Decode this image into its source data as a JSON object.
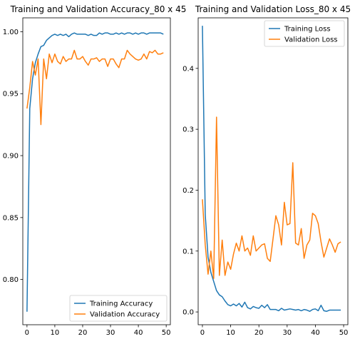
{
  "colors": {
    "train": "#1f77b4",
    "val": "#ff7f0e"
  },
  "chart_data": [
    {
      "type": "line",
      "title": "Training and Validation Accuracy_80 x 45",
      "xlabel": "",
      "ylabel": "",
      "xlim": [
        -1.5,
        51.5
      ],
      "ylim": [
        0.7635,
        1.0112
      ],
      "xticks": [
        0,
        10,
        20,
        30,
        40,
        50
      ],
      "yticks": [
        0.8,
        0.85,
        0.9,
        0.95,
        1.0
      ],
      "ytick_labels": [
        "0.80",
        "0.85",
        "0.90",
        "0.95",
        "1.00"
      ],
      "legend_position": "lower-right",
      "x": [
        0,
        1,
        2,
        3,
        4,
        5,
        6,
        7,
        8,
        9,
        10,
        11,
        12,
        13,
        14,
        15,
        16,
        17,
        18,
        19,
        20,
        21,
        22,
        23,
        24,
        25,
        26,
        27,
        28,
        29,
        30,
        31,
        32,
        33,
        34,
        35,
        36,
        37,
        38,
        39,
        40,
        41,
        42,
        43,
        44,
        45,
        46,
        47,
        48,
        49
      ],
      "series": [
        {
          "name": "Training Accuracy",
          "color_key": "train",
          "values": [
            0.774,
            0.938,
            0.962,
            0.975,
            0.982,
            0.988,
            0.989,
            0.993,
            0.995,
            0.997,
            0.998,
            0.997,
            0.998,
            0.997,
            0.998,
            0.996,
            0.998,
            0.999,
            0.998,
            0.998,
            0.998,
            0.998,
            0.997,
            0.998,
            0.997,
            0.997,
            0.999,
            0.998,
            0.999,
            0.999,
            0.998,
            0.998,
            0.999,
            0.998,
            0.999,
            0.998,
            0.999,
            0.999,
            0.998,
            0.999,
            0.998,
            0.999,
            0.999,
            0.998,
            0.999,
            0.999,
            0.999,
            0.999,
            0.999,
            0.998
          ]
        },
        {
          "name": "Validation Accuracy",
          "color_key": "val",
          "values": [
            0.938,
            0.955,
            0.976,
            0.965,
            0.978,
            0.925,
            0.978,
            0.962,
            0.982,
            0.975,
            0.982,
            0.976,
            0.974,
            0.98,
            0.976,
            0.978,
            0.978,
            0.985,
            0.978,
            0.978,
            0.98,
            0.976,
            0.973,
            0.978,
            0.978,
            0.979,
            0.976,
            0.978,
            0.978,
            0.972,
            0.978,
            0.978,
            0.974,
            0.971,
            0.978,
            0.978,
            0.985,
            0.982,
            0.98,
            0.978,
            0.977,
            0.978,
            0.982,
            0.978,
            0.984,
            0.983,
            0.985,
            0.982,
            0.982,
            0.983
          ]
        }
      ]
    },
    {
      "type": "line",
      "title": "Training and Validation Loss_80 x 45",
      "xlabel": "",
      "ylabel": "",
      "xlim": [
        -1.5,
        51.5
      ],
      "ylim": [
        -0.021,
        0.483
      ],
      "xticks": [
        0,
        10,
        20,
        30,
        40,
        50
      ],
      "yticks": [
        0.0,
        0.1,
        0.2,
        0.3,
        0.4
      ],
      "ytick_labels": [
        "0.0",
        "0.1",
        "0.2",
        "0.3",
        "0.4"
      ],
      "legend_position": "upper-right",
      "x": [
        0,
        1,
        2,
        3,
        4,
        5,
        6,
        7,
        8,
        9,
        10,
        11,
        12,
        13,
        14,
        15,
        16,
        17,
        18,
        19,
        20,
        21,
        22,
        23,
        24,
        25,
        26,
        27,
        28,
        29,
        30,
        31,
        32,
        33,
        34,
        35,
        36,
        37,
        38,
        39,
        40,
        41,
        42,
        43,
        44,
        45,
        46,
        47,
        48,
        49
      ],
      "series": [
        {
          "name": "Training Loss",
          "color_key": "train",
          "values": [
            0.47,
            0.16,
            0.09,
            0.065,
            0.05,
            0.035,
            0.028,
            0.025,
            0.018,
            0.012,
            0.01,
            0.013,
            0.01,
            0.014,
            0.008,
            0.016,
            0.007,
            0.005,
            0.009,
            0.007,
            0.006,
            0.011,
            0.007,
            0.012,
            0.004,
            0.004,
            0.004,
            0.002,
            0.006,
            0.003,
            0.004,
            0.005,
            0.004,
            0.003,
            0.004,
            0.002,
            0.004,
            0.003,
            0.001,
            0.004,
            0.005,
            0.002,
            0.011,
            0.002,
            0.001,
            0.003,
            0.003,
            0.003,
            0.003,
            0.003
          ]
        },
        {
          "name": "Validation Loss",
          "color_key": "val",
          "values": [
            0.185,
            0.11,
            0.062,
            0.1,
            0.055,
            0.32,
            0.06,
            0.118,
            0.06,
            0.082,
            0.07,
            0.095,
            0.113,
            0.1,
            0.125,
            0.1,
            0.105,
            0.093,
            0.125,
            0.1,
            0.105,
            0.11,
            0.112,
            0.088,
            0.083,
            0.12,
            0.158,
            0.143,
            0.11,
            0.18,
            0.143,
            0.145,
            0.245,
            0.113,
            0.11,
            0.137,
            0.088,
            0.11,
            0.118,
            0.162,
            0.158,
            0.145,
            0.115,
            0.09,
            0.105,
            0.12,
            0.11,
            0.098,
            0.112,
            0.115
          ]
        }
      ]
    }
  ]
}
